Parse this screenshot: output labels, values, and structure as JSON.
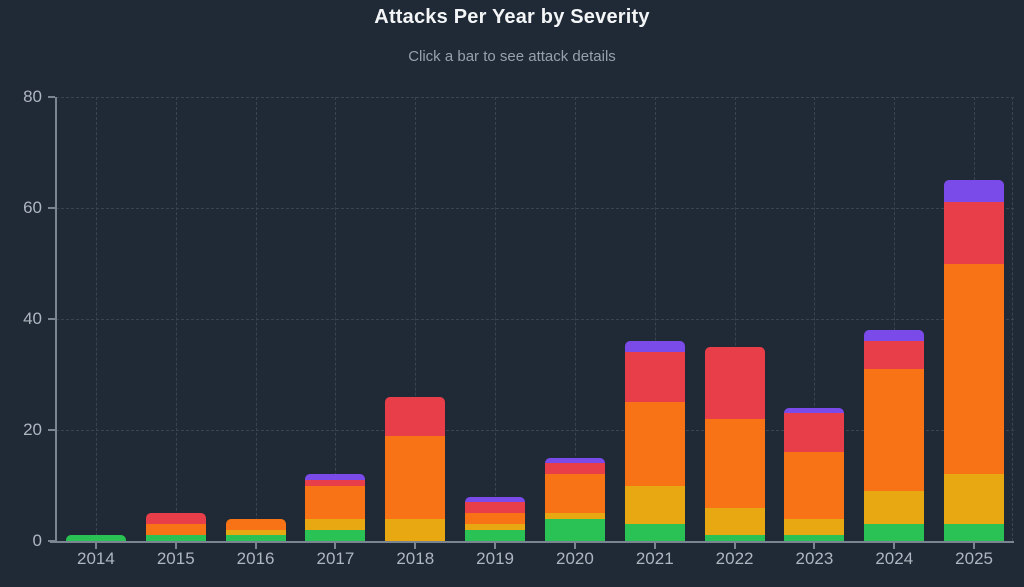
{
  "header": {
    "title": "Attacks Per Year by Severity",
    "subtitle": "Click a bar to see attack details"
  },
  "chart_data": {
    "type": "bar",
    "stacked": true,
    "title": "Attacks Per Year by Severity",
    "subtitle": "Click a bar to see attack details",
    "xlabel": "",
    "ylabel": "",
    "ylim": [
      0,
      80
    ],
    "yticks": [
      0,
      20,
      40,
      60,
      80
    ],
    "grid": "dashed horizontal and vertical gridlines",
    "legend": "none",
    "categories": [
      "2014",
      "2015",
      "2016",
      "2017",
      "2018",
      "2019",
      "2020",
      "2021",
      "2022",
      "2023",
      "2024",
      "2025"
    ],
    "series": [
      {
        "name": "green",
        "color": "#2bc255",
        "values": [
          1,
          1,
          1,
          2,
          0,
          2,
          4,
          3,
          1,
          1,
          3,
          3
        ]
      },
      {
        "name": "yellow",
        "color": "#e8a812",
        "values": [
          0,
          0,
          1,
          2,
          4,
          1,
          1,
          7,
          5,
          3,
          6,
          9
        ]
      },
      {
        "name": "orange",
        "color": "#f87315",
        "values": [
          0,
          2,
          2,
          6,
          15,
          2,
          7,
          15,
          16,
          12,
          22,
          38
        ]
      },
      {
        "name": "red",
        "color": "#e83e49",
        "values": [
          0,
          2,
          0,
          1,
          7,
          2,
          2,
          9,
          13,
          7,
          5,
          11
        ]
      },
      {
        "name": "purple",
        "color": "#7a4be8",
        "values": [
          0,
          0,
          0,
          1,
          0,
          1,
          1,
          2,
          0,
          1,
          2,
          4
        ]
      }
    ],
    "totals": [
      1,
      5,
      4,
      12,
      26,
      8,
      15,
      36,
      35,
      24,
      38,
      65
    ]
  },
  "style": {
    "background": "#1f2a36",
    "grid_color": "#3a4450",
    "axis_color": "#7b8591",
    "tick_label_color": "#aeb6c0",
    "title_color": "#f3f5f7",
    "subtitle_color": "#96a1ac"
  }
}
